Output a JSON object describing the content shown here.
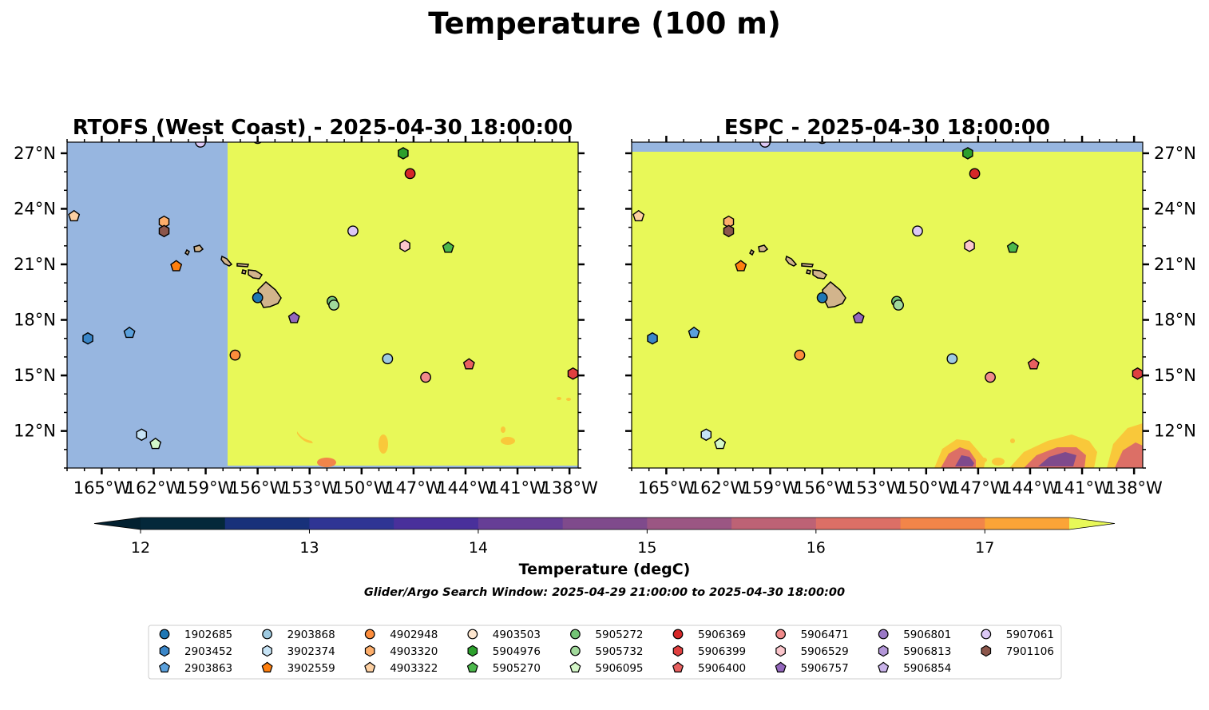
{
  "figure": {
    "suptitle": "Temperature (100 m)",
    "search_window": "Glider/Argo Search Window: 2025-04-29 21:00:00 to 2025-04-30 18:00:00"
  },
  "colors": {
    "ocean_nodata": "#97b6e0",
    "warm_field": "#e8f858",
    "land": "#d2b48c"
  },
  "chart_data": [
    {
      "type": "heatmap",
      "panel": "left",
      "title": "RTOFS (West Coast) - 2025-04-30 18:00:00",
      "xlim": [
        -167,
        -137.5
      ],
      "ylim": [
        10,
        27.6
      ],
      "xticks": [
        -165,
        -162,
        -159,
        -156,
        -153,
        -150,
        -147,
        -144,
        -141,
        -138
      ],
      "xticklabels": [
        "165°W",
        "162°W",
        "159°W",
        "156°W",
        "153°W",
        "150°W",
        "147°W",
        "144°W",
        "141°W",
        "138°W"
      ],
      "yticks": [
        12,
        15,
        18,
        21,
        24,
        27
      ],
      "yticklabels": [
        "12°N",
        "15°N",
        "18°N",
        "21°N",
        "24°N",
        "27°N"
      ],
      "ytick_side": "left",
      "field_note_nodata_west_of_lon": -157.75,
      "floats": [
        {
          "id": "1902685",
          "lon": -156.0,
          "lat": 19.2
        },
        {
          "id": "2903452",
          "lon": -165.8,
          "lat": 17.0
        },
        {
          "id": "2903863",
          "lon": -163.4,
          "lat": 17.3
        },
        {
          "id": "2903868",
          "lon": -148.5,
          "lat": 15.9
        },
        {
          "id": "3902374",
          "lon": -162.7,
          "lat": 11.8
        },
        {
          "id": "3902559",
          "lon": -160.7,
          "lat": 20.9
        },
        {
          "id": "4902948",
          "lon": -157.3,
          "lat": 16.1
        },
        {
          "id": "4903320",
          "lon": -161.4,
          "lat": 23.3
        },
        {
          "id": "4903322",
          "lon": -166.6,
          "lat": 23.6
        },
        {
          "id": "4903503",
          "lon": -156.0,
          "lat": 27.8
        },
        {
          "id": "5904976",
          "lon": -147.6,
          "lat": 27.0
        },
        {
          "id": "5905270",
          "lon": -145.0,
          "lat": 21.9
        },
        {
          "id": "5905272",
          "lon": -151.7,
          "lat": 19.0
        },
        {
          "id": "5905732",
          "lon": -151.6,
          "lat": 18.8
        },
        {
          "id": "5906095",
          "lon": -161.9,
          "lat": 11.3
        },
        {
          "id": "5906369",
          "lon": -147.2,
          "lat": 25.9
        },
        {
          "id": "5906399",
          "lon": -137.8,
          "lat": 15.1
        },
        {
          "id": "5906400",
          "lon": -143.8,
          "lat": 15.6
        },
        {
          "id": "5906471",
          "lon": -146.3,
          "lat": 14.9
        },
        {
          "id": "5906529",
          "lon": -147.5,
          "lat": 22.0
        },
        {
          "id": "5906757",
          "lon": -153.9,
          "lat": 18.1
        },
        {
          "id": "5907061",
          "lon": -150.5,
          "lat": 22.8
        },
        {
          "id": "5907061b",
          "lon": -159.3,
          "lat": 27.6
        },
        {
          "id": "7901106",
          "lon": -161.4,
          "lat": 22.8
        }
      ]
    },
    {
      "type": "heatmap",
      "panel": "right",
      "title": "ESPC - 2025-04-30 18:00:00",
      "xlim": [
        -167,
        -137.5
      ],
      "ylim": [
        10,
        27.6
      ],
      "xticks": [
        -165,
        -162,
        -159,
        -156,
        -153,
        -150,
        -147,
        -144,
        -141,
        -138
      ],
      "xticklabels": [
        "165°W",
        "162°W",
        "159°W",
        "156°W",
        "153°W",
        "150°W",
        "147°W",
        "144°W",
        "141°W",
        "138°W"
      ],
      "yticks": [
        12,
        15,
        18,
        21,
        24,
        27
      ],
      "yticklabels": [
        "12°N",
        "15°N",
        "18°N",
        "21°N",
        "24°N",
        "27°N"
      ],
      "ytick_side": "right",
      "field_note_nodata_north_of_lat": 27.2,
      "floats": [
        {
          "id": "1902685",
          "lon": -156.0,
          "lat": 19.2
        },
        {
          "id": "2903452",
          "lon": -165.8,
          "lat": 17.0
        },
        {
          "id": "2903863",
          "lon": -163.4,
          "lat": 17.3
        },
        {
          "id": "2903868",
          "lon": -148.5,
          "lat": 15.9
        },
        {
          "id": "3902374",
          "lon": -162.7,
          "lat": 11.8
        },
        {
          "id": "3902559",
          "lon": -160.7,
          "lat": 20.9
        },
        {
          "id": "4902948",
          "lon": -157.3,
          "lat": 16.1
        },
        {
          "id": "4903320",
          "lon": -161.4,
          "lat": 23.3
        },
        {
          "id": "4903322",
          "lon": -166.6,
          "lat": 23.6
        },
        {
          "id": "4903503",
          "lon": -156.0,
          "lat": 27.8
        },
        {
          "id": "5904976",
          "lon": -147.6,
          "lat": 27.0
        },
        {
          "id": "5905270",
          "lon": -145.0,
          "lat": 21.9
        },
        {
          "id": "5905272",
          "lon": -151.7,
          "lat": 19.0
        },
        {
          "id": "5905732",
          "lon": -151.6,
          "lat": 18.8
        },
        {
          "id": "5906095",
          "lon": -161.9,
          "lat": 11.3
        },
        {
          "id": "5906369",
          "lon": -147.2,
          "lat": 25.9
        },
        {
          "id": "5906399",
          "lon": -137.8,
          "lat": 15.1
        },
        {
          "id": "5906400",
          "lon": -143.8,
          "lat": 15.6
        },
        {
          "id": "5906471",
          "lon": -146.3,
          "lat": 14.9
        },
        {
          "id": "5906529",
          "lon": -147.5,
          "lat": 22.0
        },
        {
          "id": "5906757",
          "lon": -153.9,
          "lat": 18.1
        },
        {
          "id": "5907061",
          "lon": -150.5,
          "lat": 22.8
        },
        {
          "id": "5907061b",
          "lon": -159.3,
          "lat": 27.6
        },
        {
          "id": "7901106",
          "lon": -161.4,
          "lat": 22.8
        }
      ]
    }
  ],
  "colorbar": {
    "label": "Temperature (degC)",
    "range": [
      12,
      17.5
    ],
    "levels": [
      12.0,
      12.5,
      13.0,
      13.5,
      14.0,
      14.5,
      15.0,
      15.5,
      16.0,
      16.5,
      17.0,
      17.5
    ],
    "colors": [
      "#04283a",
      "#18317a",
      "#2f3594",
      "#49309b",
      "#663e96",
      "#7f4a8c",
      "#9b5683",
      "#bd6275",
      "#dc6f66",
      "#f28549",
      "#fba437",
      "#f9c83a"
    ],
    "under_color": "#022030",
    "over_color": "#e8f858",
    "ticks": [
      12,
      13,
      14,
      15,
      16,
      17
    ],
    "ticklabels": [
      "12",
      "13",
      "14",
      "15",
      "16",
      "17"
    ]
  },
  "legend": {
    "columns": [
      [
        {
          "id": "1902685",
          "label": "1902685",
          "marker": "circle",
          "color": "#1f77b4"
        },
        {
          "id": "2903452",
          "label": "2903452",
          "marker": "hexagon",
          "color": "#3a86c8"
        },
        {
          "id": "2903863",
          "label": "2903863",
          "marker": "pentagon",
          "color": "#5aa0dc"
        }
      ],
      [
        {
          "id": "2903868",
          "label": "2903868",
          "marker": "circle",
          "color": "#9ecae1"
        },
        {
          "id": "3902374",
          "label": "3902374",
          "marker": "hexagon",
          "color": "#c6e3f5"
        },
        {
          "id": "3902559",
          "label": "3902559",
          "marker": "pentagon",
          "color": "#ff7f0e"
        }
      ],
      [
        {
          "id": "4902948",
          "label": "4902948",
          "marker": "circle",
          "color": "#fd8d3c"
        },
        {
          "id": "4903320",
          "label": "4903320",
          "marker": "hexagon",
          "color": "#fdae6b"
        },
        {
          "id": "4903322",
          "label": "4903322",
          "marker": "pentagon",
          "color": "#fdd0a2"
        }
      ],
      [
        {
          "id": "4903503",
          "label": "4903503",
          "marker": "circle",
          "color": "#fde6cf"
        },
        {
          "id": "5904976",
          "label": "5904976",
          "marker": "hexagon",
          "color": "#2ca02c"
        },
        {
          "id": "5905270",
          "label": "5905270",
          "marker": "pentagon",
          "color": "#4cb84c"
        }
      ],
      [
        {
          "id": "5905272",
          "label": "5905272",
          "marker": "circle",
          "color": "#74c476"
        },
        {
          "id": "5905732",
          "label": "5905732",
          "marker": "circle",
          "color": "#a1d99b"
        },
        {
          "id": "5906095",
          "label": "5906095",
          "marker": "pentagon",
          "color": "#d4f7c8"
        }
      ],
      [
        {
          "id": "5906369",
          "label": "5906369",
          "marker": "circle",
          "color": "#d62728"
        },
        {
          "id": "5906399",
          "label": "5906399",
          "marker": "hexagon",
          "color": "#e04040"
        },
        {
          "id": "5906400",
          "label": "5906400",
          "marker": "pentagon",
          "color": "#e86060"
        }
      ],
      [
        {
          "id": "5906471",
          "label": "5906471",
          "marker": "circle",
          "color": "#f08a8a"
        },
        {
          "id": "5906529",
          "label": "5906529",
          "marker": "hexagon",
          "color": "#fbc6cc"
        },
        {
          "id": "5906757",
          "label": "5906757",
          "marker": "pentagon",
          "color": "#9467bd"
        }
      ],
      [
        {
          "id": "5906801",
          "label": "5906801",
          "marker": "circle",
          "color": "#9a78c6"
        },
        {
          "id": "5906813",
          "label": "5906813",
          "marker": "hexagon",
          "color": "#b396d8"
        },
        {
          "id": "5906854",
          "label": "5906854",
          "marker": "pentagon",
          "color": "#c9b3ea"
        }
      ],
      [
        {
          "id": "5907061",
          "label": "5907061",
          "marker": "circle",
          "color": "#dcc8f5"
        },
        {
          "id": "7901106",
          "label": "7901106",
          "marker": "hexagon",
          "color": "#8c564b"
        }
      ]
    ]
  }
}
